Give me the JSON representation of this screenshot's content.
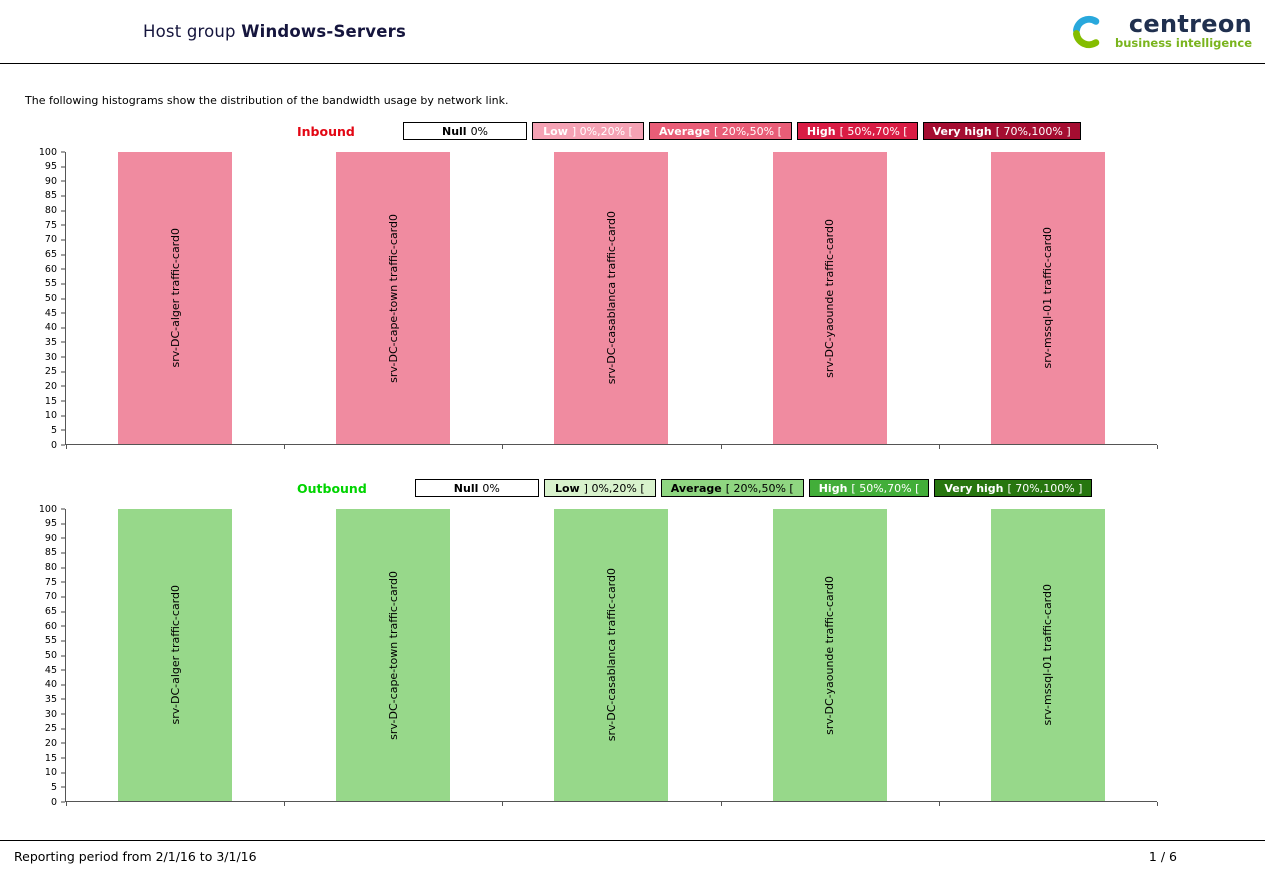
{
  "header": {
    "title_prefix": "Host group",
    "title_bold": "Windows-Servers",
    "logo": {
      "brand": "centreon",
      "tagline": "business intelligence",
      "icon_blue": "#29a8dc",
      "icon_green": "#84bd00",
      "brand_color": "#20304f",
      "tagline_color": "#7ab41d"
    }
  },
  "intro": "The following histograms show the distribution of the bandwidth usage by network link.",
  "chart_data": [
    {
      "type": "bar",
      "title": "Inbound",
      "title_color": "#e30613",
      "categories": [
        "srv-DC-alger traffic-card0",
        "srv-DC-cape-town traffic-card0",
        "srv-DC-casablanca traffic-card0",
        "srv-DC-yaounde traffic-card0",
        "srv-mssql-01 traffic-card0"
      ],
      "values": [
        100,
        100,
        100,
        100,
        100
      ],
      "xlabel": "",
      "ylabel": "",
      "ylim": [
        0,
        100
      ],
      "yticks": [
        0,
        5,
        10,
        15,
        20,
        25,
        30,
        35,
        40,
        45,
        50,
        55,
        60,
        65,
        70,
        75,
        80,
        85,
        90,
        95,
        100
      ],
      "bar_color": "#f08ba0",
      "grid": false,
      "legend_position": "top",
      "legend": [
        {
          "bold": "Null",
          "rest": "0%",
          "bg": "#ffffff",
          "fg": "#000000"
        },
        {
          "bold": "Low",
          "rest": "] 0%,20% [",
          "bg": "#f5a2b4",
          "fg": "#ffffff"
        },
        {
          "bold": "Average",
          "rest": "[ 20%,50% [",
          "bg": "#e95d77",
          "fg": "#ffffff"
        },
        {
          "bold": "High",
          "rest": "[ 50%,70% [",
          "bg": "#d91c44",
          "fg": "#ffffff"
        },
        {
          "bold": "Very high",
          "rest": "[ 70%,100% ]",
          "bg": "#a50d31",
          "fg": "#ffffff"
        }
      ]
    },
    {
      "type": "bar",
      "title": "Outbound",
      "title_color": "#00d400",
      "categories": [
        "srv-DC-alger traffic-card0",
        "srv-DC-cape-town traffic-card0",
        "srv-DC-casablanca traffic-card0",
        "srv-DC-yaounde traffic-card0",
        "srv-mssql-01 traffic-card0"
      ],
      "values": [
        100,
        100,
        100,
        100,
        100
      ],
      "xlabel": "",
      "ylabel": "",
      "ylim": [
        0,
        100
      ],
      "yticks": [
        0,
        5,
        10,
        15,
        20,
        25,
        30,
        35,
        40,
        45,
        50,
        55,
        60,
        65,
        70,
        75,
        80,
        85,
        90,
        95,
        100
      ],
      "bar_color": "#97d88a",
      "grid": false,
      "legend_position": "top",
      "legend": [
        {
          "bold": "Null",
          "rest": "0%",
          "bg": "#ffffff",
          "fg": "#000000"
        },
        {
          "bold": "Low",
          "rest": "] 0%,20% [",
          "bg": "#d8f2cc",
          "fg": "#000000"
        },
        {
          "bold": "Average",
          "rest": "[ 20%,50% [",
          "bg": "#8fd681",
          "fg": "#000000"
        },
        {
          "bold": "High",
          "rest": "[ 50%,70% [",
          "bg": "#42ae39",
          "fg": "#ffffff"
        },
        {
          "bold": "Very high",
          "rest": "[ 70%,100% ]",
          "bg": "#27760f",
          "fg": "#ffffff"
        }
      ]
    }
  ],
  "footer": {
    "period": "Reporting period from 2/1/16 to 3/1/16",
    "page": "1 / 6"
  }
}
